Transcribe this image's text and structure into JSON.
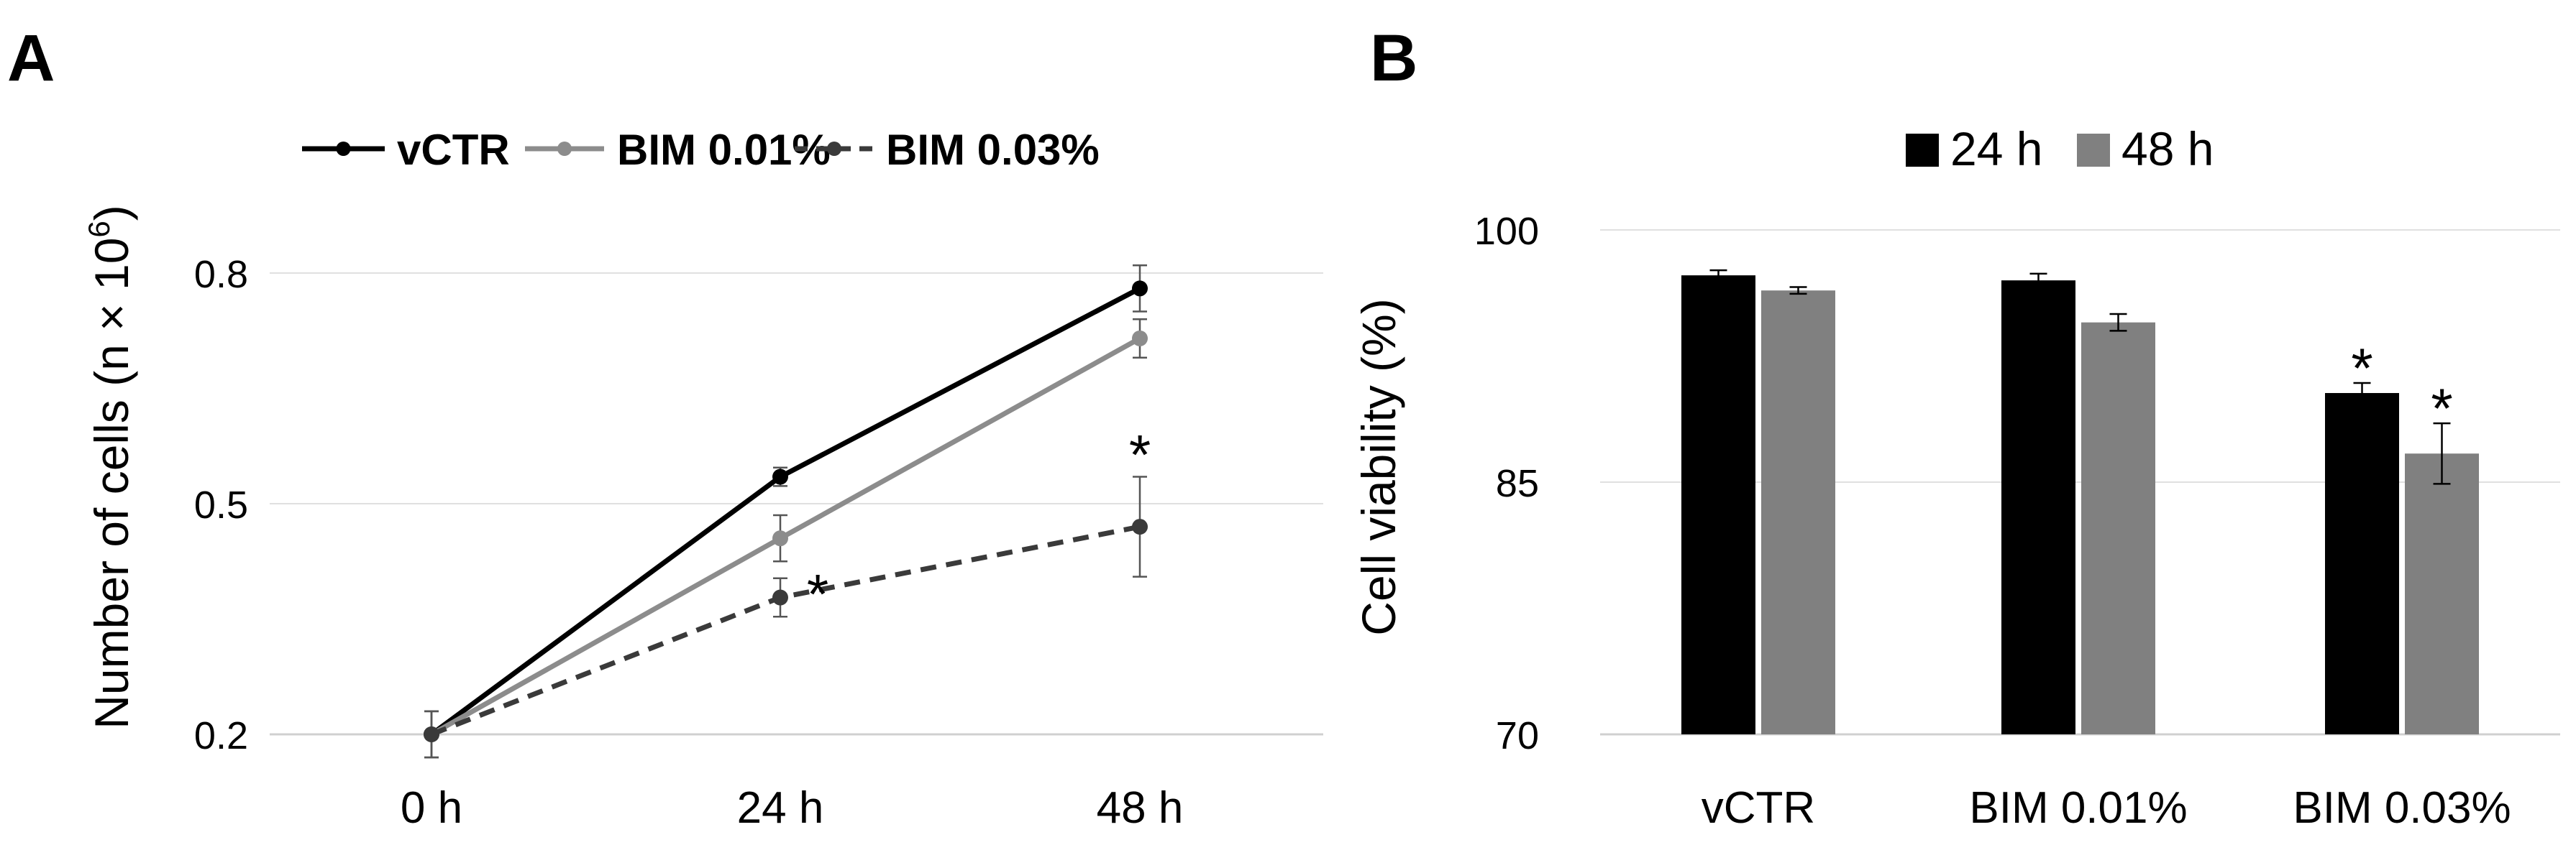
{
  "panels": {
    "a_letter": "A",
    "b_letter": "B"
  },
  "chart_data": [
    {
      "type": "line",
      "panel": "A",
      "ylabel_main": "Number of cells (n × 10",
      "ylabel_exp": "6",
      "ylabel_close": ")",
      "categories": [
        "0 h",
        "24 h",
        "48 h"
      ],
      "yticks": [
        "0.2",
        "0.5",
        "0.8"
      ],
      "ylim": [
        0.2,
        0.8
      ],
      "grid": true,
      "legend_position": "top",
      "series": [
        {
          "name": "vCTR",
          "values": [
            0.2,
            0.535,
            0.78
          ],
          "errors": [
            0.03,
            0.012,
            0.03
          ],
          "color": "#000000",
          "dashed": false
        },
        {
          "name": "BIM 0.01%",
          "values": [
            0.2,
            0.455,
            0.715
          ],
          "errors": [
            0.03,
            0.03,
            0.025
          ],
          "color": "#8c8c8c",
          "dashed": false
        },
        {
          "name": "BIM 0.03%",
          "values": [
            0.2,
            0.378,
            0.47
          ],
          "errors": [
            0.03,
            0.025,
            0.065
          ],
          "color": "#3a3a3a",
          "dashed": true
        }
      ],
      "annotations": [
        {
          "text": "*",
          "series": "BIM 0.03%",
          "category": "24 h"
        },
        {
          "text": "*",
          "series": "BIM 0.03%",
          "category": "48 h"
        }
      ]
    },
    {
      "type": "bar",
      "panel": "B",
      "ylabel": "Cell viability (%)",
      "categories": [
        "vCTR",
        "BIM 0.01%",
        "BIM 0.03%"
      ],
      "yticks": [
        "70",
        "85",
        "100"
      ],
      "ylim": [
        70,
        100
      ],
      "grid": true,
      "legend_position": "top",
      "series": [
        {
          "name": "24 h",
          "values": [
            97.3,
            97.0,
            90.3
          ],
          "errors": [
            0.3,
            0.4,
            0.6
          ],
          "color": "#000000"
        },
        {
          "name": "48 h",
          "values": [
            96.4,
            94.5,
            86.7
          ],
          "errors": [
            0.2,
            0.5,
            1.8
          ],
          "color": "#808080"
        }
      ],
      "annotations": [
        {
          "text": "*",
          "series": "24 h",
          "category": "BIM 0.03%"
        },
        {
          "text": "*",
          "series": "48 h",
          "category": "BIM 0.03%"
        }
      ]
    }
  ]
}
